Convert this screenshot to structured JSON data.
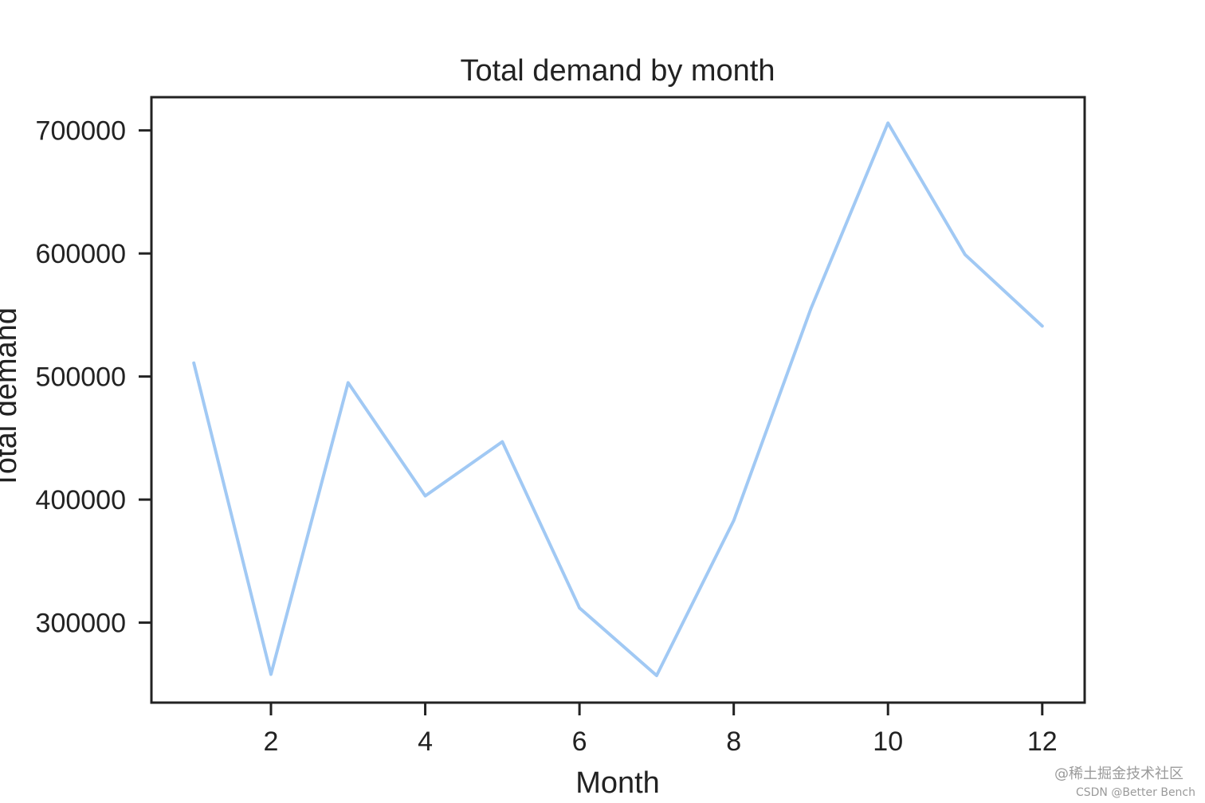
{
  "chart_data": {
    "type": "line",
    "title": "Total demand by month",
    "xlabel": "Month",
    "ylabel": "Total demand",
    "x": [
      1,
      2,
      3,
      4,
      5,
      6,
      7,
      8,
      9,
      10,
      11,
      12
    ],
    "series": [
      {
        "values": [
          511000,
          258000,
          495000,
          403000,
          447000,
          312000,
          257000,
          383000,
          555000,
          706000,
          599000,
          541000
        ],
        "color": "#a1c9f4"
      }
    ],
    "xticks": [
      2,
      4,
      6,
      8,
      10,
      12
    ],
    "yticks": [
      300000,
      400000,
      500000,
      600000,
      700000
    ],
    "xlim": [
      0.45,
      12.55
    ],
    "ylim": [
      235000,
      727000
    ],
    "grid": false,
    "legend": false
  },
  "watermark": {
    "line1": "@稀土掘金技术社区",
    "line2": "CSDN @Better Bench"
  }
}
